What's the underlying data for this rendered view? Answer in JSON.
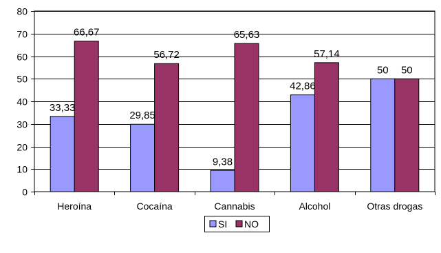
{
  "chart_data": {
    "type": "bar",
    "categories": [
      "Heroína",
      "Cocaína",
      "Cannabis",
      "Alcohol",
      "Otras drogas"
    ],
    "series": [
      {
        "name": "SI",
        "color": "#9999ff",
        "values": [
          33.33,
          29.85,
          9.38,
          42.86,
          50
        ],
        "labels": [
          "33,33",
          "29,85",
          "9,38",
          "42,86",
          "50"
        ]
      },
      {
        "name": "NO",
        "color": "#993366",
        "values": [
          66.67,
          56.72,
          65.63,
          57.14,
          50
        ],
        "labels": [
          "66,67",
          "56,72",
          "65,63",
          "57,14",
          "50"
        ]
      }
    ],
    "ylim": [
      0,
      80
    ],
    "yticks": [
      0,
      10,
      20,
      30,
      40,
      50,
      60,
      70,
      80
    ],
    "grid": true,
    "legend_position": "bottom",
    "title": "",
    "xlabel": "",
    "ylabel": ""
  }
}
